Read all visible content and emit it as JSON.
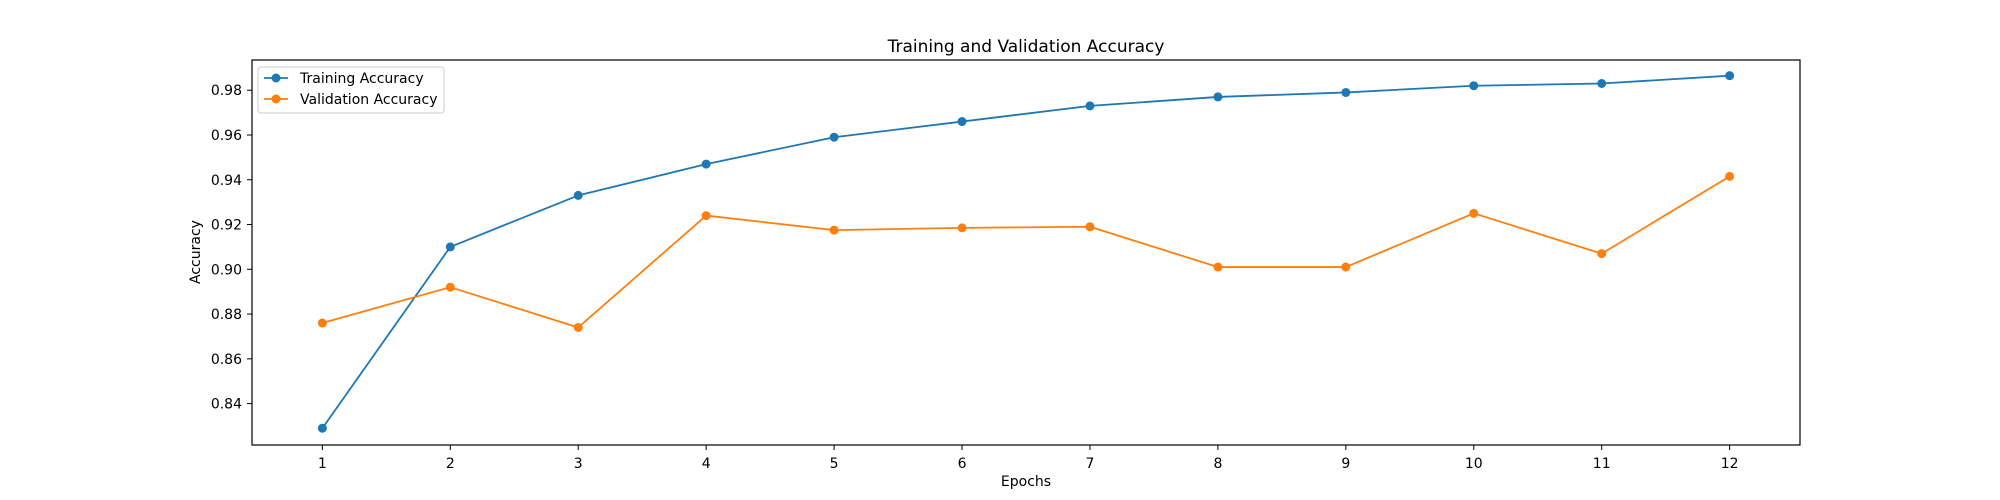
{
  "chart_data": {
    "type": "line",
    "title": "Training and Validation Accuracy",
    "xlabel": "Epochs",
    "ylabel": "Accuracy",
    "x": [
      1,
      2,
      3,
      4,
      5,
      6,
      7,
      8,
      9,
      10,
      11,
      12
    ],
    "xticks": [
      1,
      2,
      3,
      4,
      5,
      6,
      7,
      8,
      9,
      10,
      11,
      12
    ],
    "yticks": [
      0.84,
      0.86,
      0.88,
      0.9,
      0.92,
      0.94,
      0.96,
      0.98
    ],
    "xlim": [
      0.45,
      12.55
    ],
    "ylim": [
      0.8215,
      0.9935
    ],
    "grid": false,
    "legend_position": "top-left",
    "series": [
      {
        "name": "Training Accuracy",
        "color": "#1f77b4",
        "marker": "circle",
        "values": [
          0.829,
          0.91,
          0.933,
          0.947,
          0.959,
          0.966,
          0.973,
          0.977,
          0.979,
          0.982,
          0.983,
          0.9865
        ]
      },
      {
        "name": "Validation Accuracy",
        "color": "#ff7f0e",
        "marker": "circle",
        "values": [
          0.876,
          0.892,
          0.874,
          0.924,
          0.9175,
          0.9185,
          0.919,
          0.901,
          0.901,
          0.925,
          0.907,
          0.9415
        ]
      }
    ]
  }
}
